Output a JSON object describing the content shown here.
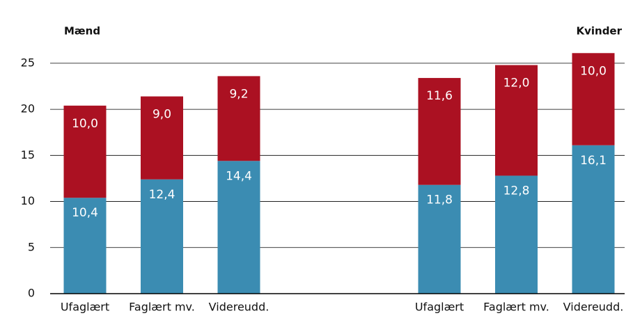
{
  "chart_data": {
    "type": "stacked-bar",
    "groups": [
      "Mænd",
      "Kvinder"
    ],
    "categories": [
      "Ufaglært",
      "Faglært mv.",
      "Videreudd.",
      "Ufaglært",
      "Faglært mv.",
      "Videreudd."
    ],
    "series": [
      {
        "color": "#3b8cb2",
        "values": [
          10.4,
          12.4,
          14.4,
          11.8,
          12.8,
          16.1
        ],
        "value_labels": [
          "10,4",
          "12,4",
          "14,4",
          "11,8",
          "12,8",
          "16,1"
        ]
      },
      {
        "color": "#ab1122",
        "values": [
          10.0,
          9.0,
          9.2,
          11.6,
          12.0,
          10.0
        ],
        "value_labels": [
          "10,0",
          "9,0",
          "9,2",
          "11,6",
          "12,0",
          "10,0"
        ]
      }
    ],
    "ylim": [
      0,
      26.5
    ],
    "yticks": [
      0,
      5,
      10,
      15,
      20,
      25
    ],
    "grid": true
  }
}
